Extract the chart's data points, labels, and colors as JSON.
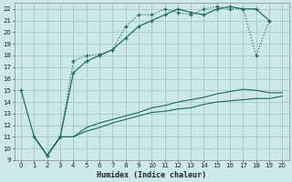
{
  "xlabel": "Humidex (Indice chaleur)",
  "bg_color": "#cce8e8",
  "grid_color": "#aacccc",
  "line_color": "#1a6b5a",
  "xlim": [
    -0.5,
    20.5
  ],
  "ylim": [
    9,
    22.5
  ],
  "yticks": [
    9,
    10,
    11,
    12,
    13,
    14,
    15,
    16,
    17,
    18,
    19,
    20,
    21,
    22
  ],
  "xticks": [
    0,
    1,
    2,
    3,
    4,
    5,
    6,
    7,
    8,
    9,
    10,
    11,
    12,
    13,
    14,
    15,
    16,
    17,
    18,
    19,
    20
  ],
  "line1_x": [
    0,
    1,
    2,
    3,
    4,
    5,
    6,
    7,
    8,
    9,
    10,
    11,
    12,
    13,
    14,
    15,
    16,
    17,
    18,
    19
  ],
  "line1_y": [
    15,
    11,
    9.4,
    11,
    16.5,
    17.5,
    18,
    18.5,
    19.5,
    20.5,
    21,
    21.5,
    22,
    21.7,
    21.5,
    22,
    22.2,
    22,
    22,
    21
  ],
  "line2_x": [
    2,
    3,
    4,
    5,
    6,
    7,
    8,
    9,
    10,
    11,
    12,
    13,
    14,
    15,
    16,
    17,
    18,
    19
  ],
  "line2_y": [
    9.4,
    11,
    17.5,
    18,
    18.1,
    18.5,
    20.5,
    21.5,
    21.5,
    22,
    21.7,
    21.5,
    22,
    22.2,
    22,
    22,
    18,
    21
  ],
  "line3_x": [
    1,
    2,
    3,
    4,
    5,
    6,
    7,
    8,
    9,
    10,
    11,
    12,
    13,
    14,
    15,
    16,
    17,
    18,
    19,
    20
  ],
  "line3_y": [
    11,
    9.4,
    11,
    11,
    11.5,
    11.8,
    12.2,
    12.5,
    12.8,
    13.1,
    13.2,
    13.4,
    13.5,
    13.8,
    14,
    14.1,
    14.2,
    14.3,
    14.3,
    14.5
  ],
  "line4_x": [
    1,
    2,
    3,
    4,
    5,
    6,
    7,
    8,
    9,
    10,
    11,
    12,
    13,
    14,
    15,
    16,
    17,
    18,
    19,
    20
  ],
  "line4_y": [
    11,
    9.4,
    11,
    11,
    11.8,
    12.2,
    12.5,
    12.8,
    13.1,
    13.5,
    13.7,
    14.0,
    14.2,
    14.4,
    14.7,
    14.9,
    15.1,
    15.0,
    14.8,
    14.8
  ]
}
